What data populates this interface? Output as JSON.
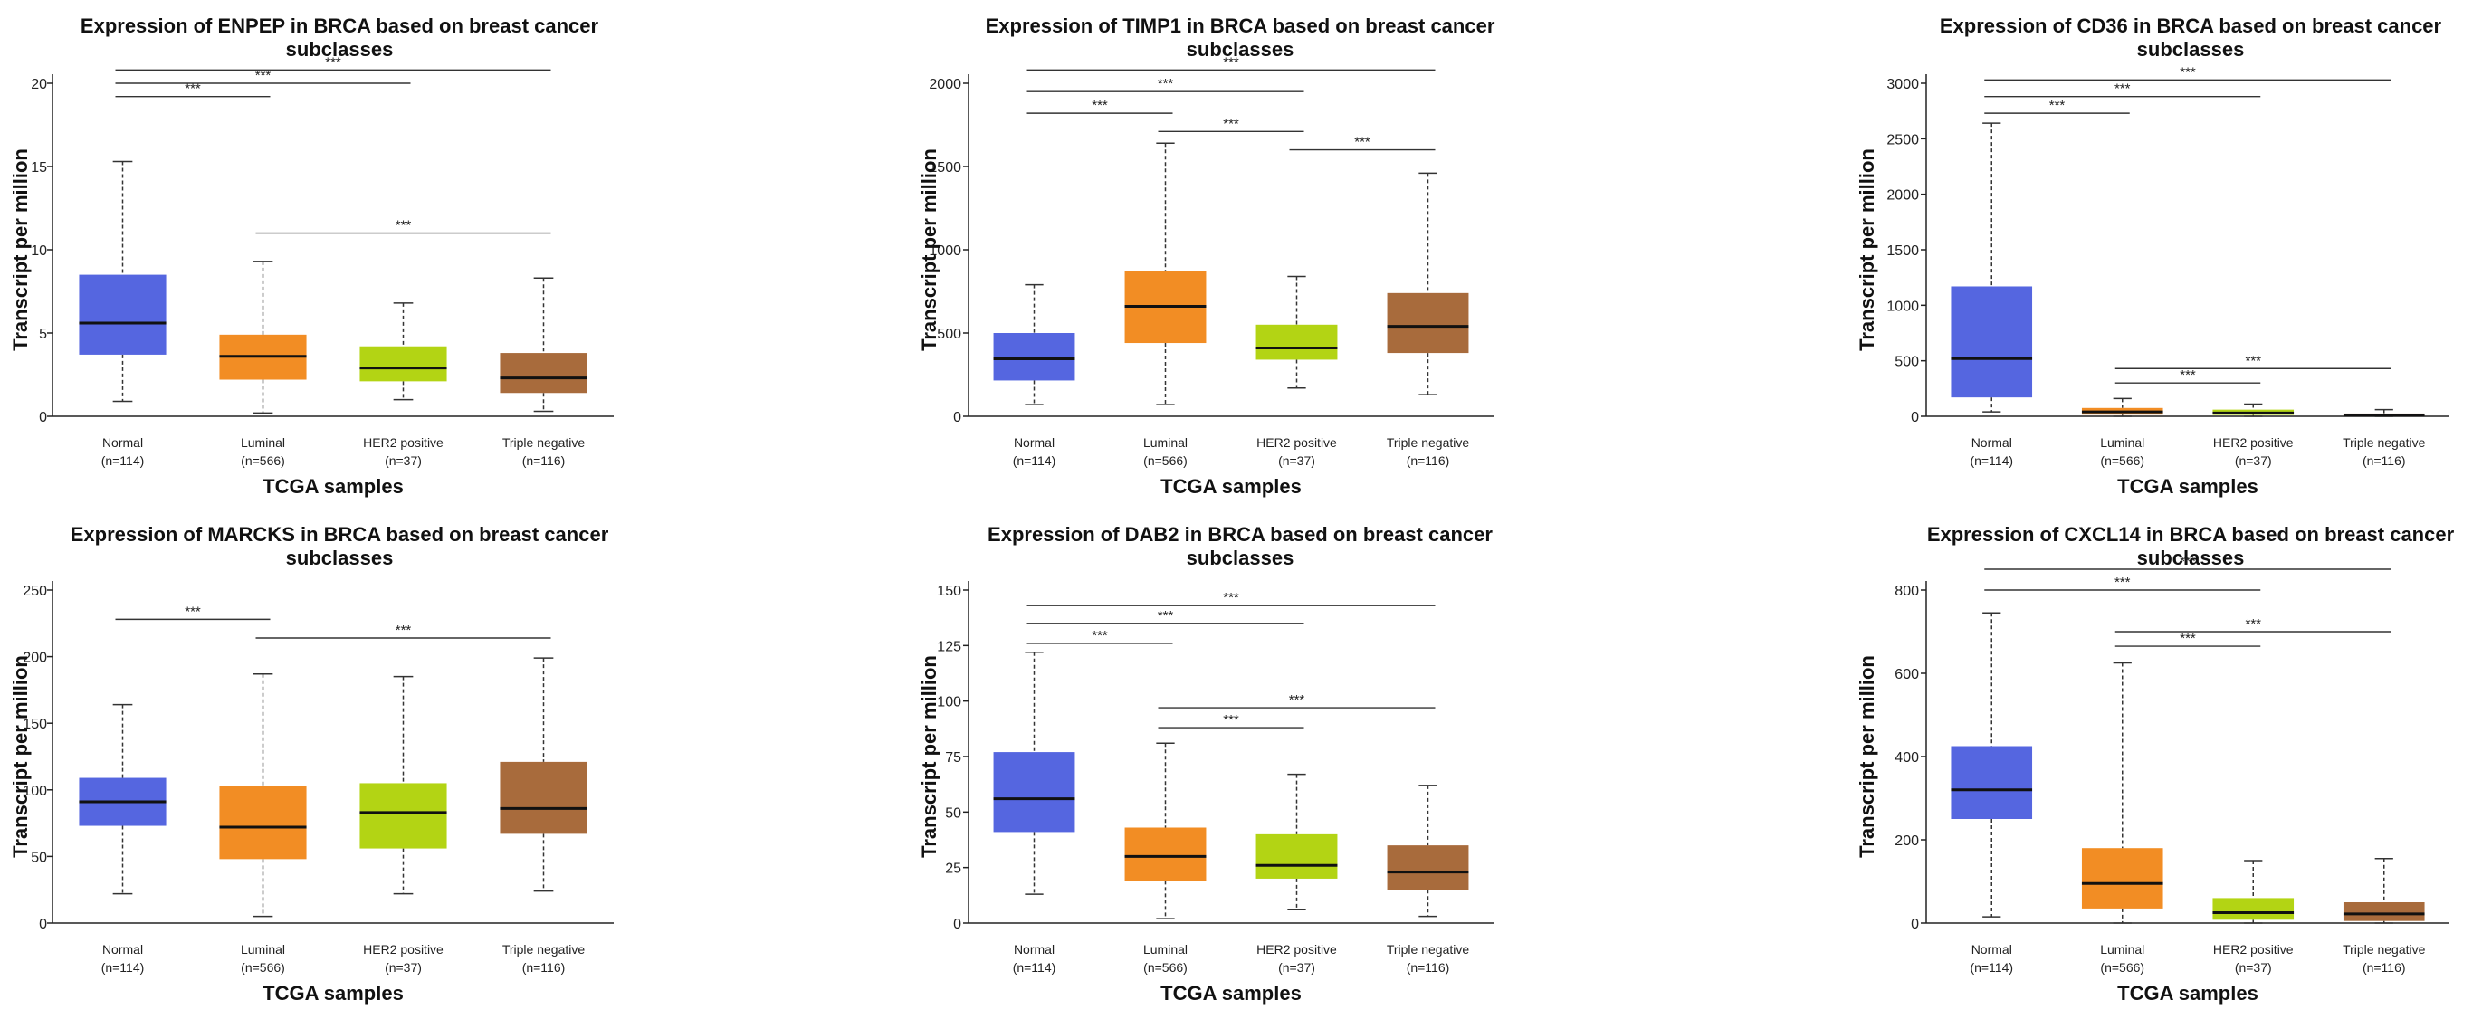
{
  "chart_data": [
    {
      "type": "boxplot",
      "title": [
        "Expression of ENPEP in BRCA based on breast cancer",
        "subclasses"
      ],
      "xlabel": "TCGA samples",
      "ylabel": "Transcript per million",
      "ylim": [
        0,
        20
      ],
      "yticks": [
        0,
        5,
        10,
        15,
        20
      ],
      "categories": [
        {
          "name": "Normal",
          "n": "(n=114)"
        },
        {
          "name": "Luminal",
          "n": "(n=566)"
        },
        {
          "name": "HER2 positive",
          "n": "(n=37)"
        },
        {
          "name": "Triple negative",
          "n": "(n=116)"
        }
      ],
      "boxes": [
        {
          "min": 0.9,
          "q1": 3.7,
          "median": 5.6,
          "q3": 8.5,
          "max": 15.3
        },
        {
          "min": 0.2,
          "q1": 2.2,
          "median": 3.6,
          "q3": 4.9,
          "max": 9.3
        },
        {
          "min": 1.0,
          "q1": 2.1,
          "median": 2.9,
          "q3": 4.2,
          "max": 6.8
        },
        {
          "min": 0.3,
          "q1": 1.4,
          "median": 2.3,
          "q3": 3.8,
          "max": 8.3
        }
      ],
      "significance": [
        {
          "from": 0,
          "to": 1,
          "y": 19.2,
          "label": "***"
        },
        {
          "from": 0,
          "to": 2,
          "y": 20.0,
          "label": "***"
        },
        {
          "from": 0,
          "to": 3,
          "y": 20.8,
          "label": "***"
        },
        {
          "from": 1,
          "to": 3,
          "y": 11.0,
          "label": "***"
        }
      ]
    },
    {
      "type": "boxplot",
      "title": [
        "Expression of TIMP1 in BRCA based on breast cancer",
        "subclasses"
      ],
      "xlabel": "TCGA samples",
      "ylabel": "Transcript per million",
      "ylim": [
        0,
        2000
      ],
      "yticks": [
        0,
        500,
        1000,
        1500,
        2000
      ],
      "categories": [
        {
          "name": "Normal",
          "n": "(n=114)"
        },
        {
          "name": "Luminal",
          "n": "(n=566)"
        },
        {
          "name": "HER2 positive",
          "n": "(n=37)"
        },
        {
          "name": "Triple negative",
          "n": "(n=116)"
        }
      ],
      "boxes": [
        {
          "min": 70,
          "q1": 215,
          "median": 345,
          "q3": 500,
          "max": 790
        },
        {
          "min": 70,
          "q1": 440,
          "median": 660,
          "q3": 870,
          "max": 1640
        },
        {
          "min": 170,
          "q1": 340,
          "median": 410,
          "q3": 550,
          "max": 840
        },
        {
          "min": 130,
          "q1": 380,
          "median": 540,
          "q3": 740,
          "max": 1460
        }
      ],
      "significance": [
        {
          "from": 0,
          "to": 1,
          "y": 1820,
          "label": "***"
        },
        {
          "from": 0,
          "to": 2,
          "y": 1950,
          "label": "***"
        },
        {
          "from": 0,
          "to": 3,
          "y": 2080,
          "label": "***"
        },
        {
          "from": 1,
          "to": 2,
          "y": 1710,
          "label": "***"
        },
        {
          "from": 2,
          "to": 3,
          "y": 1600,
          "label": "***"
        }
      ]
    },
    {
      "type": "boxplot",
      "title": [
        "Expression of CD36 in BRCA based on breast cancer",
        "subclasses"
      ],
      "xlabel": "TCGA samples",
      "ylabel": "Transcript per million",
      "ylim": [
        0,
        3000
      ],
      "yticks": [
        0,
        500,
        1000,
        1500,
        2000,
        2500,
        3000
      ],
      "categories": [
        {
          "name": "Normal",
          "n": "(n=114)"
        },
        {
          "name": "Luminal",
          "n": "(n=566)"
        },
        {
          "name": "HER2 positive",
          "n": "(n=37)"
        },
        {
          "name": "Triple negative",
          "n": "(n=116)"
        }
      ],
      "boxes": [
        {
          "min": 40,
          "q1": 170,
          "median": 520,
          "q3": 1170,
          "max": 2640
        },
        {
          "min": 0,
          "q1": 15,
          "median": 40,
          "q3": 75,
          "max": 160
        },
        {
          "min": 0,
          "q1": 12,
          "median": 30,
          "q3": 60,
          "max": 110
        },
        {
          "min": 0,
          "q1": 3,
          "median": 10,
          "q3": 25,
          "max": 60
        }
      ],
      "significance": [
        {
          "from": 0,
          "to": 1,
          "y": 2730,
          "label": "***"
        },
        {
          "from": 0,
          "to": 2,
          "y": 2880,
          "label": "***"
        },
        {
          "from": 0,
          "to": 3,
          "y": 3030,
          "label": "***"
        },
        {
          "from": 1,
          "to": 2,
          "y": 300,
          "label": "***"
        },
        {
          "from": 1,
          "to": 3,
          "y": 430,
          "label": "***"
        }
      ]
    },
    {
      "type": "boxplot",
      "title": [
        "Expression of MARCKS in BRCA based on breast cancer",
        "subclasses"
      ],
      "xlabel": "TCGA samples",
      "ylabel": "Transcript per million",
      "ylim": [
        0,
        250
      ],
      "yticks": [
        0,
        50,
        100,
        150,
        200,
        250
      ],
      "categories": [
        {
          "name": "Normal",
          "n": "(n=114)"
        },
        {
          "name": "Luminal",
          "n": "(n=566)"
        },
        {
          "name": "HER2 positive",
          "n": "(n=37)"
        },
        {
          "name": "Triple negative",
          "n": "(n=116)"
        }
      ],
      "boxes": [
        {
          "min": 22,
          "q1": 73,
          "median": 91,
          "q3": 109,
          "max": 164
        },
        {
          "min": 5,
          "q1": 48,
          "median": 72,
          "q3": 103,
          "max": 187
        },
        {
          "min": 22,
          "q1": 56,
          "median": 83,
          "q3": 105,
          "max": 185
        },
        {
          "min": 24,
          "q1": 67,
          "median": 86,
          "q3": 121,
          "max": 199
        }
      ],
      "significance": [
        {
          "from": 0,
          "to": 1,
          "y": 228,
          "label": "***"
        },
        {
          "from": 1,
          "to": 3,
          "y": 214,
          "label": "***"
        }
      ]
    },
    {
      "type": "boxplot",
      "title": [
        "Expression of DAB2 in BRCA based on breast cancer",
        "subclasses"
      ],
      "xlabel": "TCGA samples",
      "ylabel": "Transcript per million",
      "ylim": [
        0,
        150
      ],
      "yticks": [
        0,
        25,
        50,
        75,
        100,
        125,
        150
      ],
      "categories": [
        {
          "name": "Normal",
          "n": "(n=114)"
        },
        {
          "name": "Luminal",
          "n": "(n=566)"
        },
        {
          "name": "HER2 positive",
          "n": "(n=37)"
        },
        {
          "name": "Triple negative",
          "n": "(n=116)"
        }
      ],
      "boxes": [
        {
          "min": 13,
          "q1": 41,
          "median": 56,
          "q3": 77,
          "max": 122
        },
        {
          "min": 2,
          "q1": 19,
          "median": 30,
          "q3": 43,
          "max": 81
        },
        {
          "min": 6,
          "q1": 20,
          "median": 26,
          "q3": 40,
          "max": 67
        },
        {
          "min": 3,
          "q1": 15,
          "median": 23,
          "q3": 35,
          "max": 62
        }
      ],
      "significance": [
        {
          "from": 0,
          "to": 1,
          "y": 126,
          "label": "***"
        },
        {
          "from": 0,
          "to": 2,
          "y": 135,
          "label": "***"
        },
        {
          "from": 0,
          "to": 3,
          "y": 143,
          "label": "***"
        },
        {
          "from": 1,
          "to": 2,
          "y": 88,
          "label": "***"
        },
        {
          "from": 1,
          "to": 3,
          "y": 97,
          "label": "***"
        }
      ]
    },
    {
      "type": "boxplot",
      "title": [
        "Expression of CXCL14 in BRCA based on breast cancer",
        "subclasses"
      ],
      "xlabel": "TCGA samples",
      "ylabel": "Transcript per million",
      "ylim": [
        0,
        800
      ],
      "yticks": [
        0,
        200,
        400,
        600,
        800
      ],
      "categories": [
        {
          "name": "Normal",
          "n": "(n=114)"
        },
        {
          "name": "Luminal",
          "n": "(n=566)"
        },
        {
          "name": "HER2 positive",
          "n": "(n=37)"
        },
        {
          "name": "Triple negative",
          "n": "(n=116)"
        }
      ],
      "boxes": [
        {
          "min": 15,
          "q1": 250,
          "median": 320,
          "q3": 425,
          "max": 745
        },
        {
          "min": 0,
          "q1": 35,
          "median": 95,
          "q3": 180,
          "max": 625
        },
        {
          "min": 0,
          "q1": 8,
          "median": 25,
          "q3": 60,
          "max": 150
        },
        {
          "min": 0,
          "q1": 5,
          "median": 22,
          "q3": 50,
          "max": 155
        }
      ],
      "significance": [
        {
          "from": 0,
          "to": 2,
          "y": 800,
          "label": "***"
        },
        {
          "from": 0,
          "to": 3,
          "y": 850,
          "label": "***"
        },
        {
          "from": 1,
          "to": 2,
          "y": 665,
          "label": "***"
        },
        {
          "from": 1,
          "to": 3,
          "y": 700,
          "label": "***"
        }
      ]
    }
  ],
  "colors": {
    "categories": [
      "#5566e0",
      "#f28d24",
      "#b3d414",
      "#a86b3c"
    ],
    "axis": "#222222",
    "median": "#111111"
  }
}
